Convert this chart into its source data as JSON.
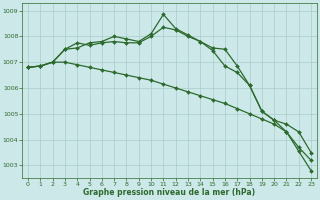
{
  "title": "Graphe pression niveau de la mer (hPa)",
  "background_color": "#cce8e8",
  "grid_color": "#aacccc",
  "line_color": "#2d6a2d",
  "marker_color": "#2d6a2d",
  "xlim": [
    -0.5,
    23.5
  ],
  "ylim": [
    1002.5,
    1009.3
  ],
  "yticks": [
    1003,
    1004,
    1005,
    1006,
    1007,
    1008,
    1009
  ],
  "xticks": [
    0,
    1,
    2,
    3,
    4,
    5,
    6,
    7,
    8,
    9,
    10,
    11,
    12,
    13,
    14,
    15,
    16,
    17,
    18,
    19,
    20,
    21,
    22,
    23
  ],
  "line1_x": [
    0,
    1,
    2,
    3,
    4,
    5,
    6,
    7,
    8,
    9,
    10,
    11,
    12,
    13,
    14,
    15,
    16,
    17,
    18,
    19,
    20,
    21,
    22,
    23
  ],
  "line1_y": [
    1006.8,
    1006.85,
    1007.0,
    1007.0,
    1006.9,
    1006.8,
    1006.7,
    1006.6,
    1006.5,
    1006.4,
    1006.3,
    1006.15,
    1006.0,
    1005.85,
    1005.7,
    1005.55,
    1005.4,
    1005.2,
    1005.0,
    1004.8,
    1004.6,
    1004.3,
    1003.7,
    1003.2
  ],
  "line2_x": [
    0,
    1,
    2,
    3,
    4,
    5,
    6,
    7,
    8,
    9,
    10,
    11,
    12,
    13,
    14,
    15,
    16,
    17,
    18,
    19,
    20,
    21,
    22,
    23
  ],
  "line2_y": [
    1006.8,
    1006.85,
    1007.0,
    1007.5,
    1007.75,
    1007.65,
    1007.75,
    1007.8,
    1007.75,
    1007.75,
    1008.0,
    1008.35,
    1008.25,
    1008.0,
    1007.8,
    1007.45,
    1006.85,
    1006.6,
    1006.1,
    1005.1,
    1004.75,
    1004.6,
    1004.3,
    1003.5
  ],
  "line3_x": [
    0,
    1,
    2,
    3,
    4,
    5,
    6,
    7,
    8,
    9,
    10,
    11,
    12,
    13,
    14,
    15,
    16,
    17,
    18,
    19,
    20,
    21,
    22,
    23
  ],
  "line3_y": [
    1006.8,
    1006.85,
    1007.0,
    1007.5,
    1007.55,
    1007.75,
    1007.8,
    1008.0,
    1007.9,
    1007.8,
    1008.1,
    1008.85,
    1008.3,
    1008.05,
    1007.8,
    1007.55,
    1007.5,
    1006.85,
    1006.1,
    1005.1,
    1004.75,
    1004.3,
    1003.55,
    1002.8
  ]
}
